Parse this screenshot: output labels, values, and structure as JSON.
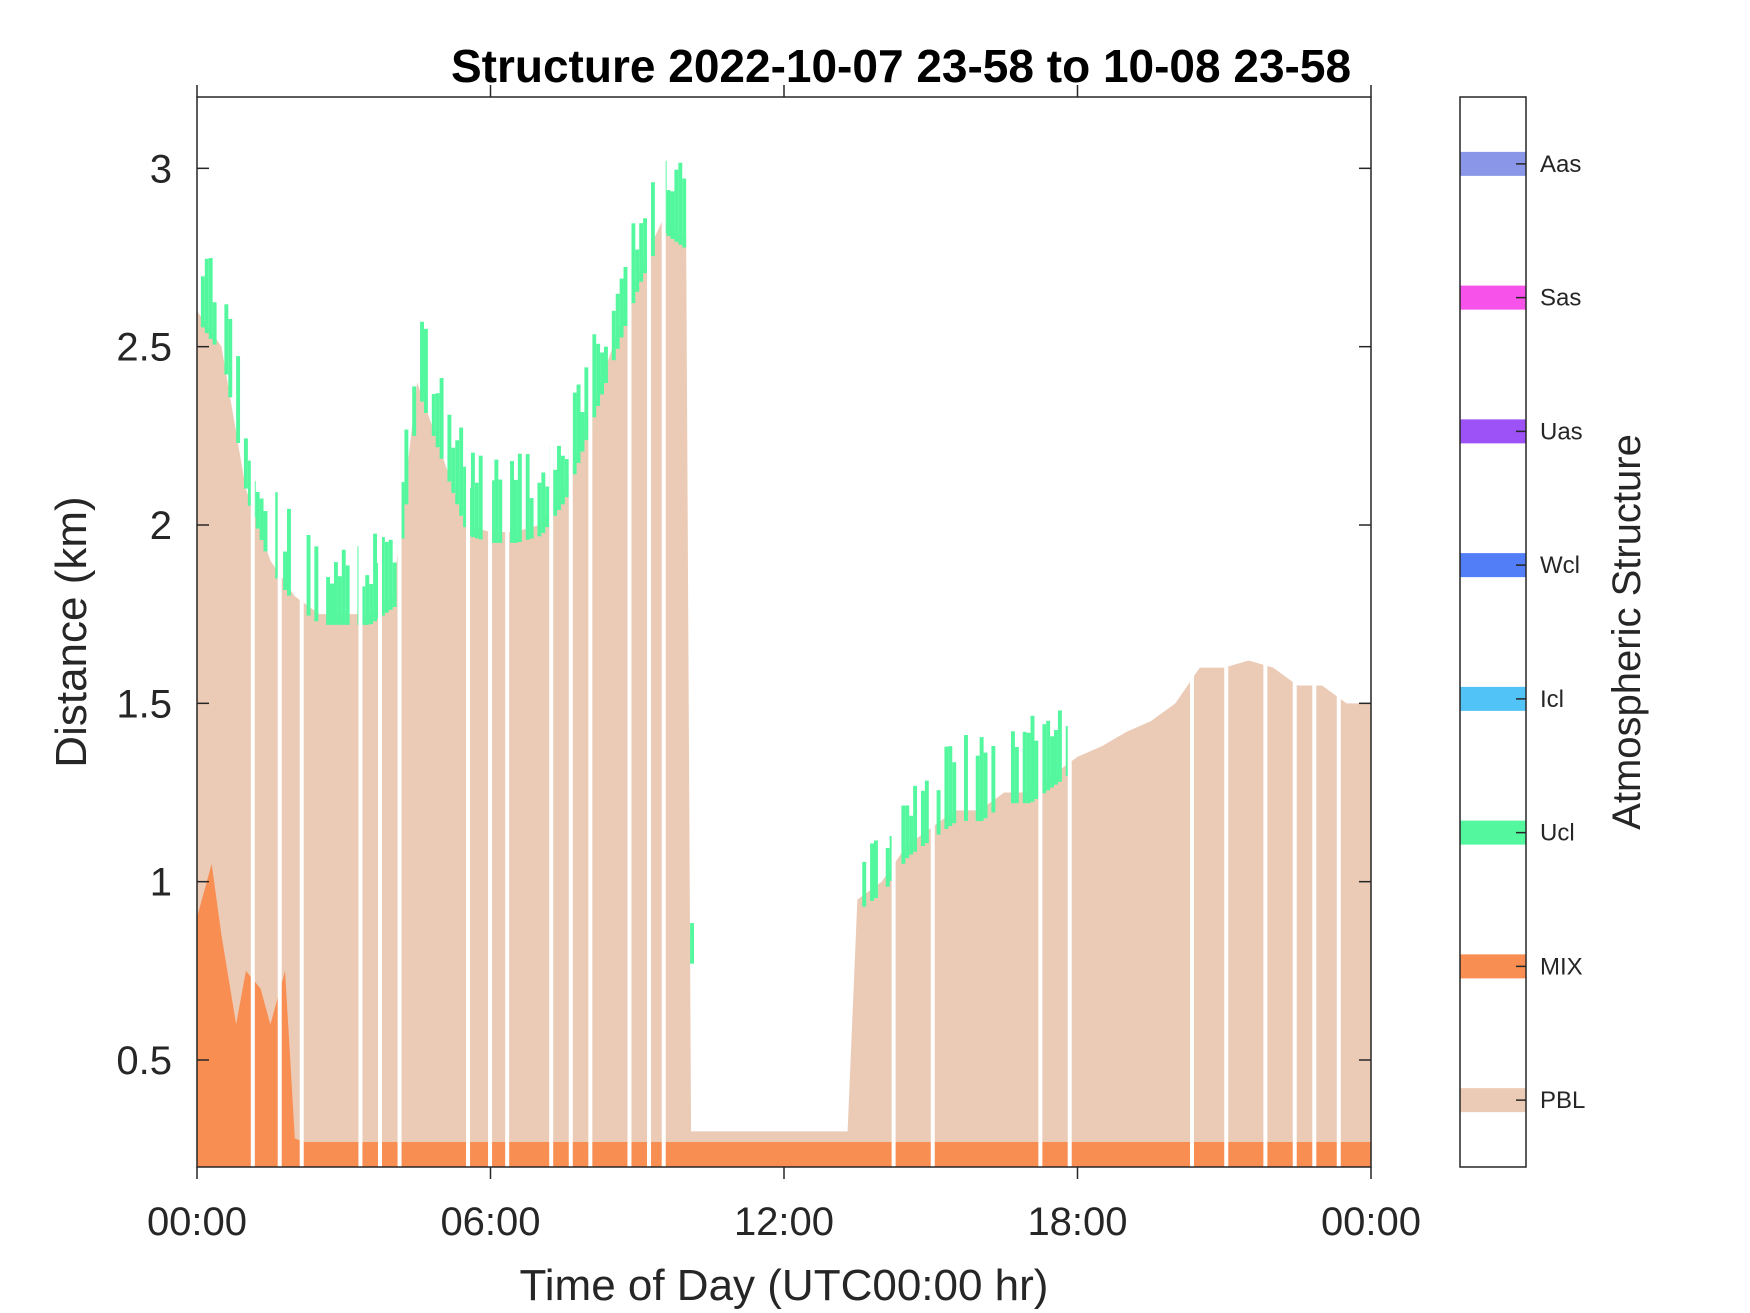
{
  "chart_data": {
    "type": "heatmap",
    "title": "Structure 2022-10-07 23-58 to 10-08 23-58",
    "xlabel": "Time of Day (UTC00:00 hr)",
    "ylabel": "Distance (km)",
    "xlim": [
      0,
      24
    ],
    "ylim": [
      0.2,
      3.2
    ],
    "x_ticks": [
      0,
      6,
      12,
      18,
      24
    ],
    "x_tick_labels": [
      "00:00",
      "06:00",
      "12:00",
      "18:00",
      "00:00"
    ],
    "y_ticks": [
      0.5,
      1,
      1.5,
      2,
      2.5,
      3
    ],
    "y_tick_labels": [
      "0.5",
      "1",
      "1.5",
      "2",
      "2.5",
      "3"
    ],
    "colorbar": {
      "title": "Atmospheric Structure",
      "classes": [
        {
          "label": "PBL",
          "color": "#EBCBB6"
        },
        {
          "label": "MIX",
          "color": "#F98E52"
        },
        {
          "label": "Ucl",
          "color": "#52F79E"
        },
        {
          "label": "Icl",
          "color": "#52C3F7"
        },
        {
          "label": "Wcl",
          "color": "#527EF7"
        },
        {
          "label": "Uas",
          "color": "#9C52F7"
        },
        {
          "label": "Sas",
          "color": "#F752EA"
        },
        {
          "label": "Aas",
          "color": "#8A97E8"
        }
      ]
    },
    "pbl_top": {
      "x": [
        0,
        0.5,
        1,
        1.5,
        2,
        2.5,
        3,
        3.5,
        4,
        4.5,
        5,
        5.5,
        6,
        6.5,
        7,
        7.5,
        8,
        8.5,
        9,
        9.5,
        10,
        10.1,
        13.3,
        13.5,
        14,
        14.5,
        15,
        15.5,
        16,
        16.5,
        17,
        17.5,
        18,
        18.5,
        19,
        19.5,
        20,
        20.5,
        21,
        21.5,
        22,
        22.5,
        23,
        23.5,
        24
      ],
      "y": [
        2.6,
        2.5,
        2.1,
        1.9,
        1.8,
        1.75,
        1.75,
        1.75,
        1.8,
        2.4,
        2.2,
        2.0,
        1.98,
        1.98,
        2.0,
        2.1,
        2.3,
        2.5,
        2.7,
        2.85,
        2.8,
        0.3,
        0.3,
        0.95,
        1.0,
        1.1,
        1.15,
        1.2,
        1.2,
        1.25,
        1.25,
        1.3,
        1.35,
        1.38,
        1.42,
        1.45,
        1.5,
        1.6,
        1.6,
        1.62,
        1.6,
        1.55,
        1.55,
        1.5,
        1.5
      ]
    },
    "mix_top": {
      "x": [
        0,
        0.3,
        0.5,
        0.8,
        1,
        1.3,
        1.5,
        1.8,
        2,
        2.2,
        3,
        6,
        9,
        10.1,
        13.3,
        14,
        18,
        24
      ],
      "y": [
        0.9,
        1.05,
        0.85,
        0.6,
        0.75,
        0.7,
        0.6,
        0.75,
        0.28,
        0.27,
        0.27,
        0.27,
        0.27,
        0.27,
        0.27,
        0.27,
        0.27,
        0.27
      ]
    },
    "gaps": [
      1.1,
      1.65,
      2.1,
      3.3,
      3.7,
      4.1,
      5.5,
      5.95,
      6.3,
      7.2,
      7.6,
      8.0,
      8.8,
      9.2,
      9.5,
      14.2,
      15.0,
      17.2,
      17.8,
      20.3,
      21.0,
      21.8,
      22.4,
      22.8,
      23.3
    ]
  }
}
